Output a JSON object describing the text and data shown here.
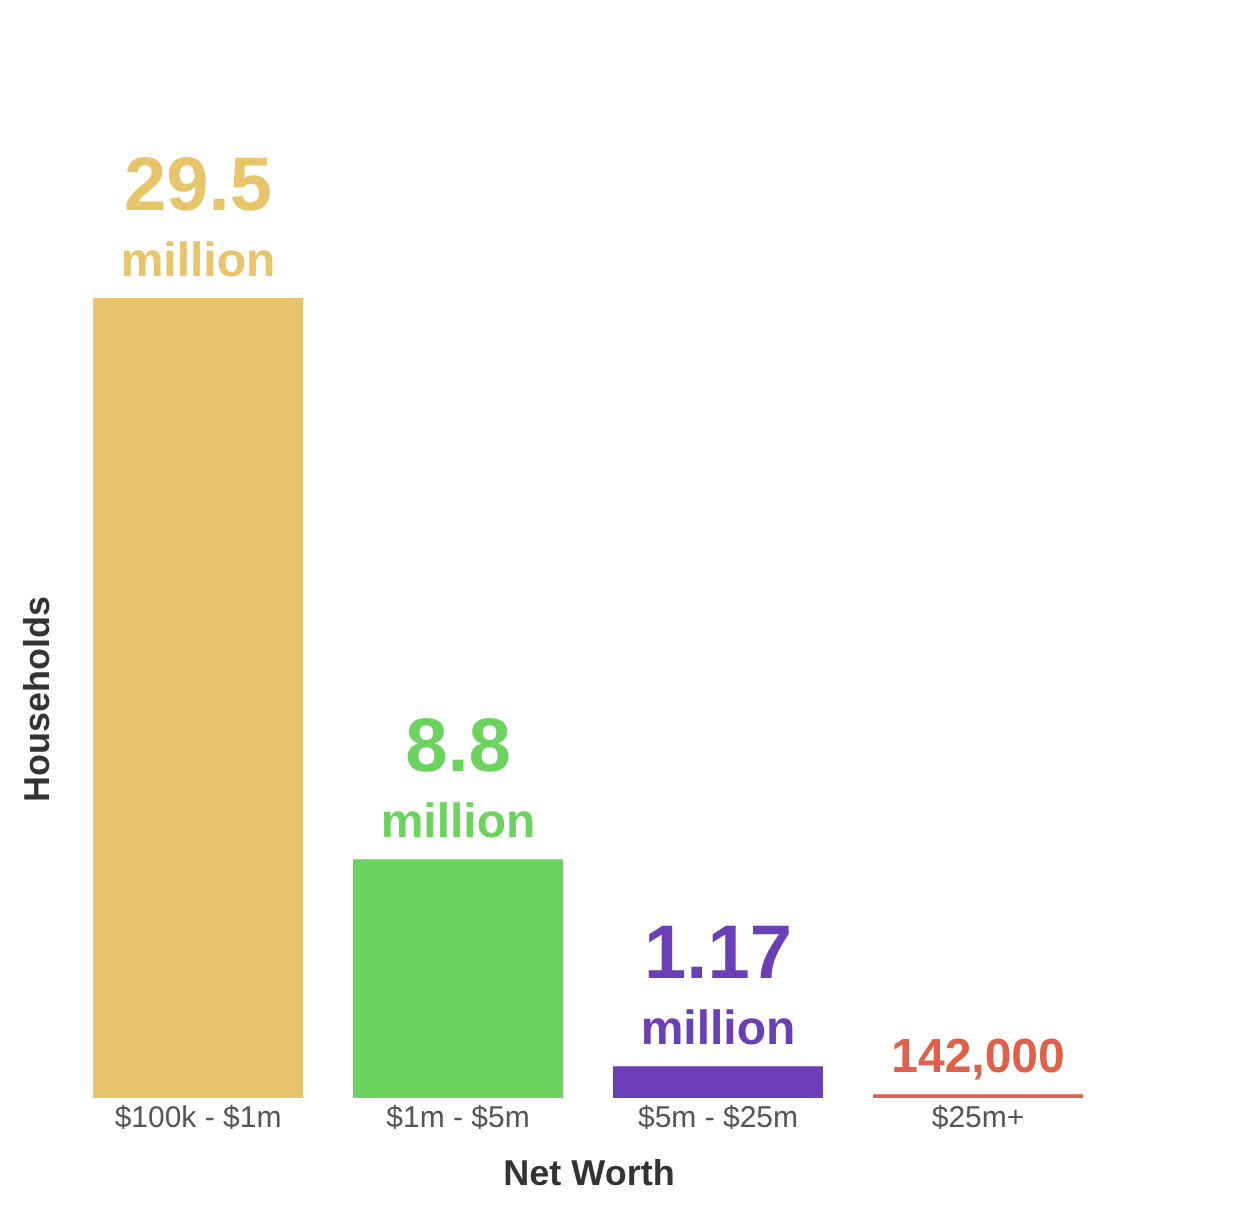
{
  "chart_data": {
    "type": "bar",
    "xlabel": "Net Worth",
    "ylabel": "Households",
    "categories": [
      "$100k - $1m",
      "$1m - $5m",
      "$5m - $25m",
      "$25m+"
    ],
    "values": [
      29500000,
      8800000,
      1170000,
      142000
    ],
    "colors": [
      "#e8c46a",
      "#6dd35f",
      "#6a3fb5",
      "#e0604a"
    ],
    "value_labels": [
      "29.5 million",
      "8.8 million",
      "1.17 million",
      "142,000"
    ],
    "grid": false
  }
}
